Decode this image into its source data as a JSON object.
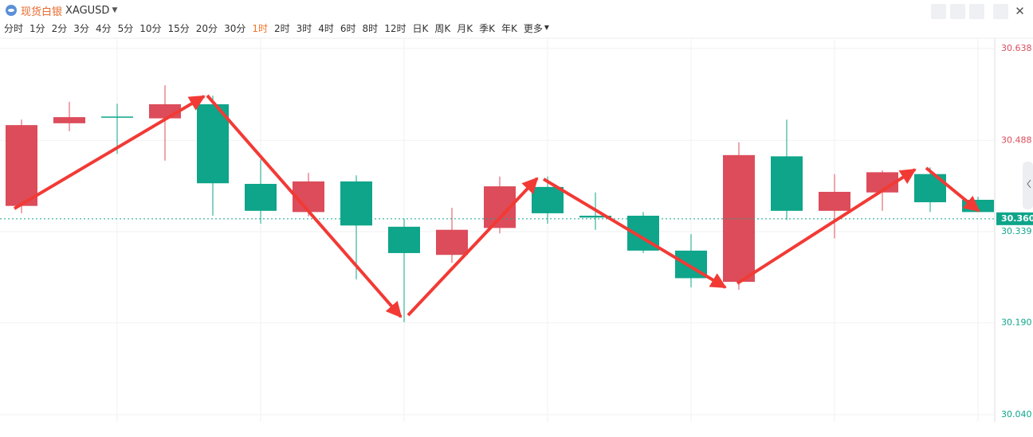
{
  "header": {
    "symbol_name": "现货白银",
    "symbol_code": "XAGUSD"
  },
  "timeframes": [
    "分时",
    "1分",
    "2分",
    "3分",
    "4分",
    "5分",
    "10分",
    "15分",
    "20分",
    "30分",
    "1时",
    "2时",
    "3时",
    "4时",
    "6时",
    "8时",
    "12时",
    "日K",
    "周K",
    "月K",
    "季K",
    "年K",
    "更多"
  ],
  "active_timeframe": "1时",
  "chart_data": {
    "type": "candlestick",
    "open": [
      30.381,
      30.516,
      30.527,
      30.524,
      30.547,
      30.417,
      30.371,
      30.421,
      30.347,
      30.301,
      30.345,
      30.412,
      30.365,
      30.365,
      30.308,
      30.257,
      30.462,
      30.373,
      30.403,
      30.433,
      30.391
    ],
    "high": [
      30.522,
      30.551,
      30.548,
      30.578,
      30.561,
      30.457,
      30.435,
      30.431,
      30.36,
      30.378,
      30.429,
      30.429,
      30.403,
      30.371,
      30.335,
      30.485,
      30.522,
      30.433,
      30.439,
      30.444,
      30.396
    ],
    "low": [
      30.369,
      30.503,
      30.466,
      30.455,
      30.365,
      30.352,
      30.364,
      30.261,
      30.191,
      30.288,
      30.336,
      30.352,
      30.342,
      30.304,
      30.248,
      30.244,
      30.358,
      30.328,
      30.373,
      30.371,
      30.371
    ],
    "close": [
      30.513,
      30.526,
      30.526,
      30.547,
      30.418,
      30.373,
      30.421,
      30.349,
      30.304,
      30.342,
      30.413,
      30.369,
      30.362,
      30.308,
      30.263,
      30.464,
      30.373,
      30.404,
      30.436,
      30.387,
      30.371
    ],
    "up_color": "#dc4c5a",
    "down_color": "#0ea58a",
    "current_price": {
      "value": 30.36,
      "label": "30.360"
    },
    "ylim": [
      30.04,
      30.638
    ],
    "yticks": [
      {
        "value": 30.638,
        "label": "30.638"
      },
      {
        "value": 30.488,
        "label": "30.488"
      },
      {
        "value": 30.339,
        "label": "30.339"
      },
      {
        "value": 30.19,
        "label": "30.190"
      },
      {
        "value": 30.04,
        "label": "30.040"
      }
    ],
    "grid": true
  }
}
